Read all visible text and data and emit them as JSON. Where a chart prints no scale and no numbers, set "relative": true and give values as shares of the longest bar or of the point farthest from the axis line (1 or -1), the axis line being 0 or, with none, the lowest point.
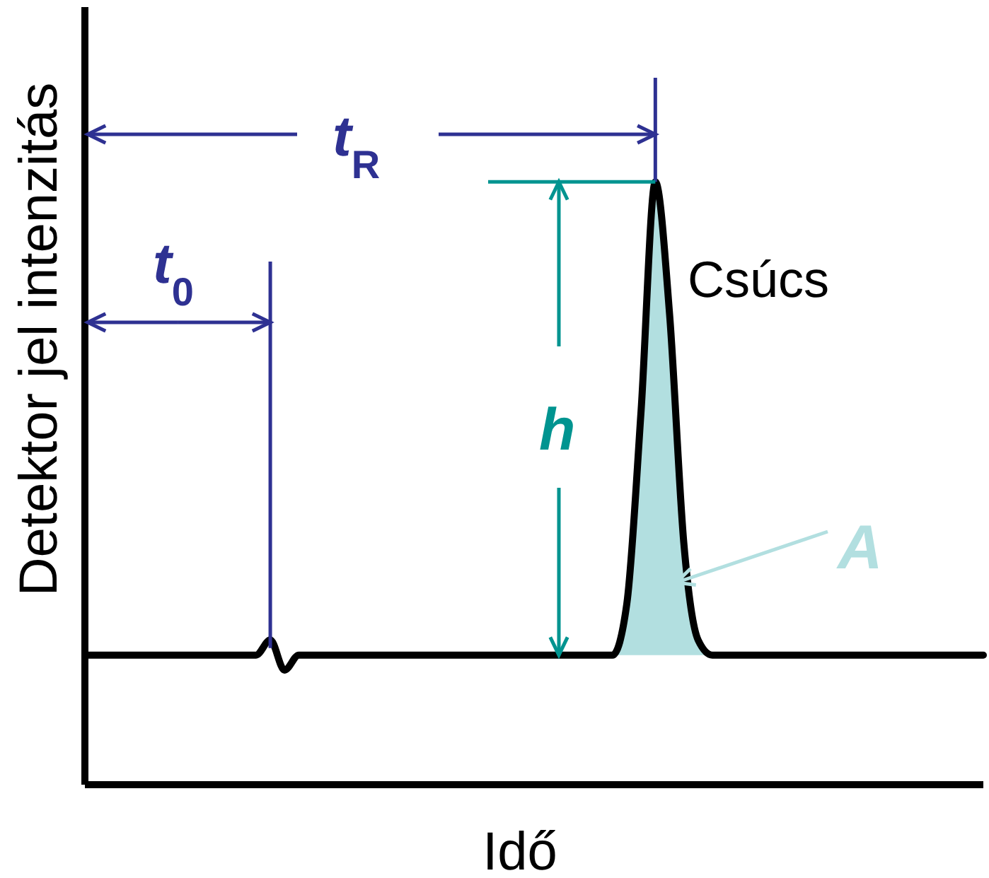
{
  "chart_data": {
    "type": "line",
    "relative": true,
    "xlabel": "Idő",
    "ylabel": "Detektor jel intenzitás",
    "marker": "none",
    "line_style": "solid",
    "annotations": [
      "t$_{0}$",
      "t$_{R}$",
      "h",
      "A",
      "Csúcs"
    ],
    "categories": [
      null,
      null,
      null,
      null,
      null,
      null,
      null,
      null,
      null,
      null,
      null,
      null,
      null,
      null,
      null,
      null,
      null,
      null,
      null,
      null,
      null,
      null,
      null,
      null,
      null,
      null,
      null,
      null,
      null,
      null,
      null,
      null,
      null,
      null,
      null,
      null,
      null,
      null,
      null,
      null,
      null,
      null,
      null,
      null,
      null,
      null,
      null,
      null,
      null,
      null,
      null,
      null,
      null,
      null,
      null,
      null,
      null,
      null,
      null,
      null,
      null,
      null,
      null,
      null
    ],
    "series": [
      {
        "color": "#000000",
        "values": [
          0.215,
          0.215,
          0.215,
          0.215,
          0.215,
          0.215,
          0.215,
          0.215,
          0.215,
          0.215,
          0.215,
          0.215,
          0.215,
          0.24,
          0.19,
          0.215,
          0.215,
          0.215,
          0.215,
          0.215,
          0.215,
          0.215,
          0.215,
          0.215,
          0.215,
          0.215,
          0.215,
          0.215,
          0.215,
          0.215,
          0.215,
          0.215,
          0.215,
          0.215,
          0.215,
          0.215,
          0.215,
          0.215,
          0.3,
          0.62,
          1,
          0.78,
          0.4,
          0.24,
          0.215,
          0.215,
          0.215,
          0.215,
          0.215,
          0.215,
          0.215,
          0.215,
          0.215,
          0.215,
          0.215,
          0.215,
          0.215,
          0.215,
          0.215,
          0.215,
          0.215,
          0.215,
          0.215,
          0.215
        ],
        "lower": [
          null,
          null,
          null,
          null,
          null,
          null,
          null,
          null,
          null,
          null,
          null,
          null,
          null,
          null,
          null,
          null,
          null,
          null,
          null,
          null,
          null,
          null,
          null,
          null,
          null,
          null,
          null,
          null,
          null,
          null,
          null,
          null,
          null,
          null,
          null,
          null,
          null,
          0.215,
          0.215,
          0.215,
          0.215,
          0.215,
          0.215,
          0.215,
          0.215,
          null,
          null,
          null,
          null,
          null,
          null,
          null,
          null,
          null,
          null,
          null,
          null,
          null,
          null,
          null,
          null,
          null,
          null,
          null
        ],
        "upper": [
          null,
          null,
          null,
          null,
          null,
          null,
          null,
          null,
          null,
          null,
          null,
          null,
          null,
          null,
          null,
          null,
          null,
          null,
          null,
          null,
          null,
          null,
          null,
          null,
          null,
          null,
          null,
          null,
          null,
          null,
          null,
          null,
          null,
          null,
          null,
          null,
          null,
          0.215,
          0.3,
          0.62,
          1,
          0.78,
          0.4,
          0.24,
          0.215,
          null,
          null,
          null,
          null,
          null,
          null,
          null,
          null,
          null,
          null,
          null,
          null,
          null,
          null,
          null,
          null,
          null,
          null,
          null
        ]
      }
    ]
  }
}
